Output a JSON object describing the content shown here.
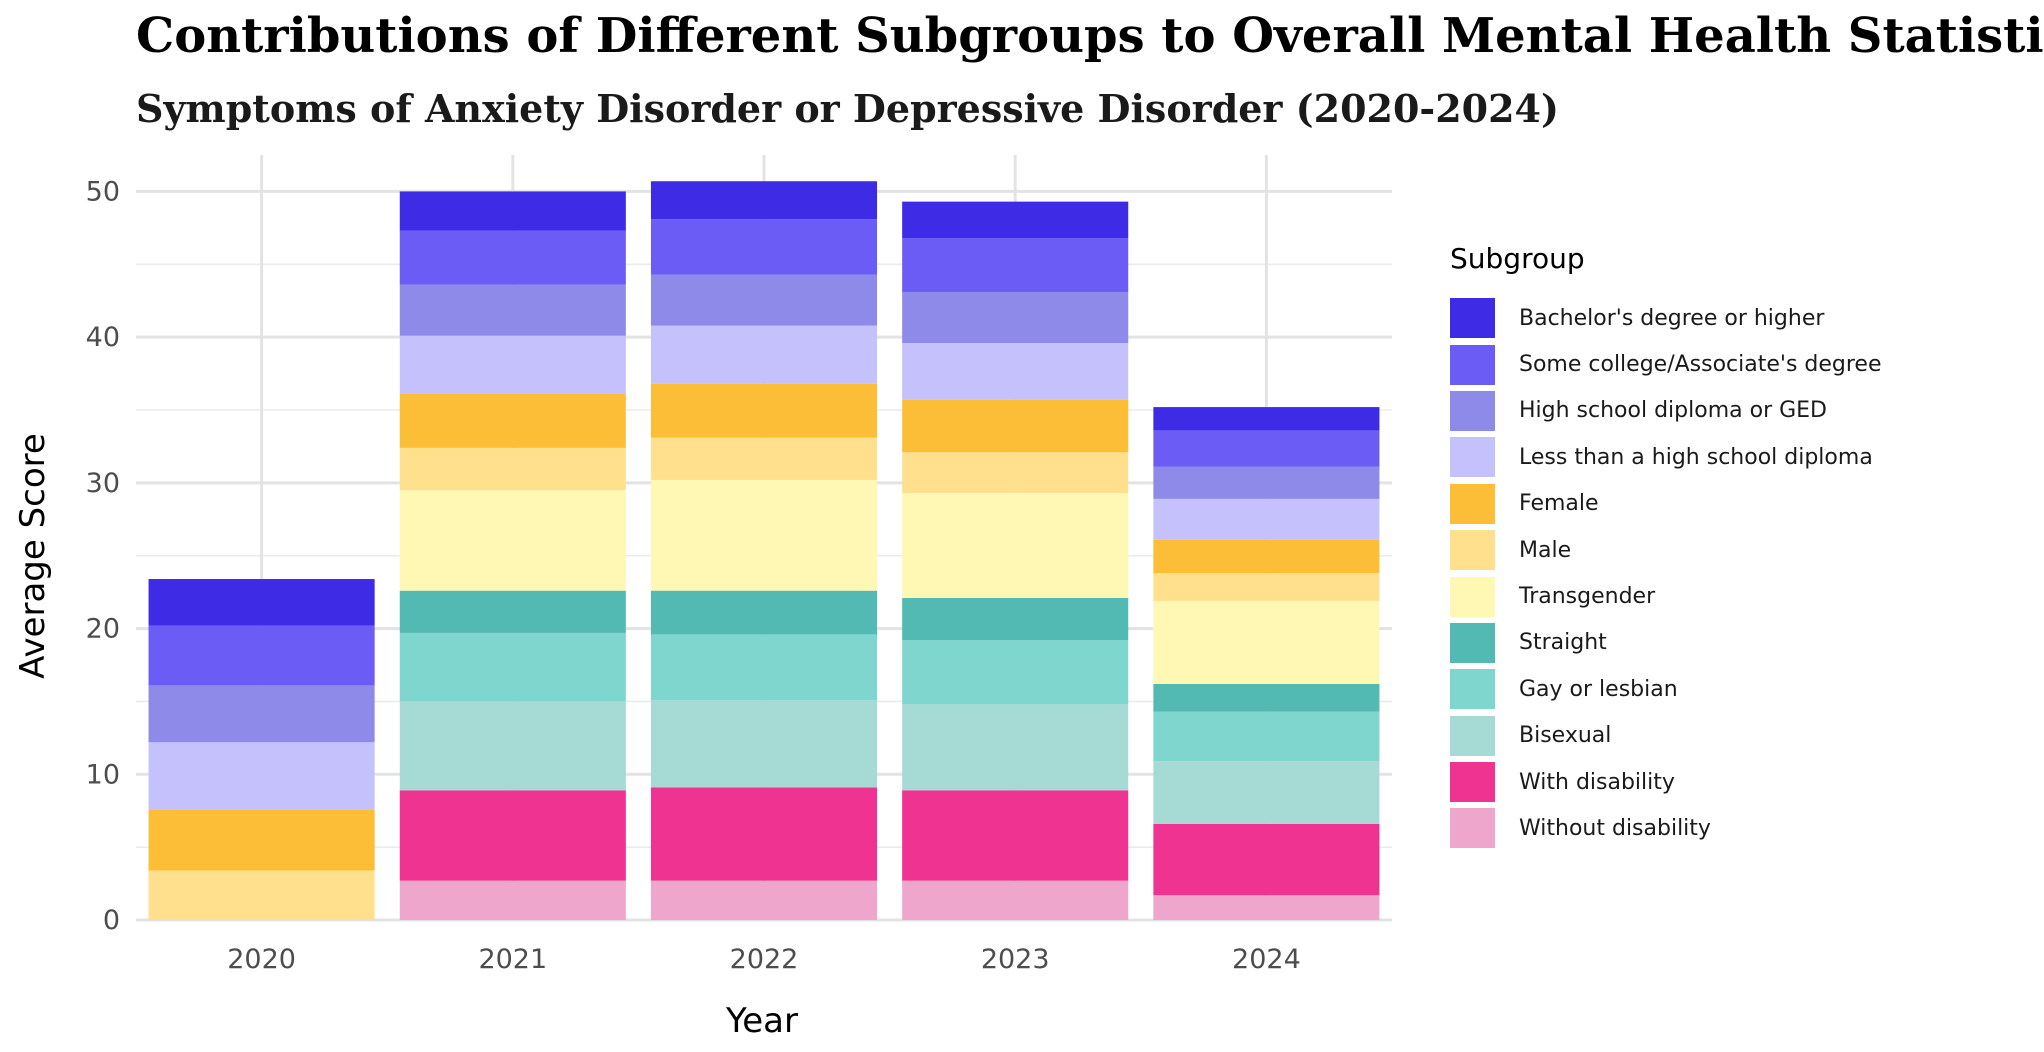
{
  "chart_data": {
    "type": "bar",
    "stacked": true,
    "title": "Contributions of Different Subgroups to Overall Mental Health Statistics",
    "subtitle": "Symptoms of Anxiety Disorder or Depressive Disorder (2020-2024)",
    "xlabel": "Year",
    "ylabel": "Average Score",
    "ylim": [
      0,
      52.5
    ],
    "yticks": [
      0,
      10,
      20,
      30,
      40,
      50
    ],
    "categories": [
      "2020",
      "2021",
      "2022",
      "2023",
      "2024"
    ],
    "legend_title": "Subgroup",
    "legend_position": "right",
    "grid": true,
    "series": [
      {
        "name": "Without disability",
        "color": "#EEA6CC",
        "values": [
          0,
          2.7,
          2.7,
          2.7,
          1.7
        ]
      },
      {
        "name": "With disability",
        "color": "#EE3390",
        "values": [
          0,
          6.2,
          6.4,
          6.2,
          4.9
        ]
      },
      {
        "name": "Bisexual",
        "color": "#A6DAD5",
        "values": [
          0,
          6.1,
          6.0,
          5.9,
          4.3
        ]
      },
      {
        "name": "Gay or lesbian",
        "color": "#7FD6CE",
        "values": [
          0,
          4.7,
          4.5,
          4.4,
          3.4
        ]
      },
      {
        "name": "Straight",
        "color": "#53BAB3",
        "values": [
          0,
          2.9,
          3.0,
          2.9,
          1.9
        ]
      },
      {
        "name": "Transgender",
        "color": "#FFF8B5",
        "values": [
          0,
          6.9,
          7.6,
          7.2,
          5.7
        ]
      },
      {
        "name": "Male",
        "color": "#FFE08C",
        "values": [
          3.4,
          2.9,
          2.9,
          2.8,
          1.9
        ]
      },
      {
        "name": "Female",
        "color": "#FBBE36",
        "values": [
          4.2,
          3.7,
          3.7,
          3.6,
          2.3
        ]
      },
      {
        "name": "Less than a high school diploma",
        "color": "#C4C1FD",
        "values": [
          4.6,
          4.0,
          4.0,
          3.9,
          2.8
        ]
      },
      {
        "name": "High school diploma or GED",
        "color": "#8D8AEA",
        "values": [
          3.9,
          3.5,
          3.5,
          3.5,
          2.2
        ]
      },
      {
        "name": "Some college/Associate's degree",
        "color": "#6A5CF5",
        "values": [
          4.1,
          3.7,
          3.8,
          3.7,
          2.5
        ]
      },
      {
        "name": "Bachelor's degree or higher",
        "color": "#3D2BE6",
        "values": [
          3.2,
          2.7,
          2.6,
          2.5,
          1.6
        ]
      }
    ]
  }
}
